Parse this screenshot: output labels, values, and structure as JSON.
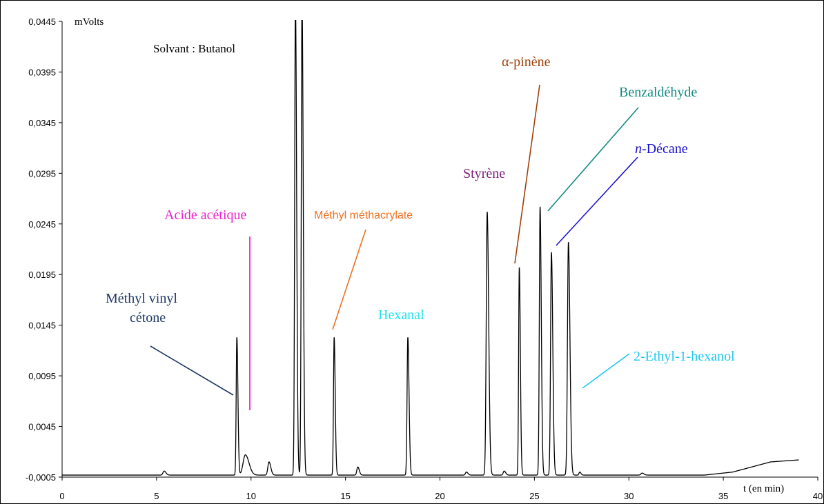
{
  "chart_data": {
    "type": "line",
    "xlabel": "t (en min)",
    "ylabel": "mVolts",
    "xlim": [
      0,
      40
    ],
    "ylim": [
      -0.0005,
      0.0445
    ],
    "x_ticks": [
      0,
      5,
      10,
      15,
      20,
      25,
      30,
      35,
      40
    ],
    "y_ticks": [
      -0.0005,
      0.0045,
      0.0095,
      0.0145,
      0.0195,
      0.0245,
      0.0295,
      0.0345,
      0.0395,
      0.0445
    ],
    "x_tick_labels": [
      "0",
      "5",
      "10",
      "15",
      "20",
      "25",
      "30",
      "35",
      "40"
    ],
    "y_tick_labels": [
      "-0,0005",
      "0,0045",
      "0,0095",
      "0,0145",
      "0,0195",
      "0,0245",
      "0,0295",
      "0,0345",
      "0,0395",
      "0,0445"
    ],
    "grid": false,
    "solvent_label": "Solvant : Butanol",
    "baseline": -0.0003,
    "peaks": [
      {
        "t": 5.4,
        "h": 0.0004,
        "w": 0.06
      },
      {
        "t": 9.25,
        "h": 0.0136,
        "w": 0.035
      },
      {
        "t": 9.7,
        "h": 0.002,
        "w": 0.12
      },
      {
        "t": 10.95,
        "h": 0.0013,
        "w": 0.06
      },
      {
        "t": 12.35,
        "h": 0.047,
        "w": 0.04
      },
      {
        "t": 12.7,
        "h": 0.047,
        "w": 0.04
      },
      {
        "t": 14.4,
        "h": 0.0136,
        "w": 0.035
      },
      {
        "t": 15.65,
        "h": 0.0008,
        "w": 0.05
      },
      {
        "t": 18.3,
        "h": 0.0136,
        "w": 0.04
      },
      {
        "t": 21.4,
        "h": 0.0003,
        "w": 0.05
      },
      {
        "t": 22.5,
        "h": 0.026,
        "w": 0.05
      },
      {
        "t": 23.4,
        "h": 0.0004,
        "w": 0.05
      },
      {
        "t": 24.2,
        "h": 0.0205,
        "w": 0.035
      },
      {
        "t": 25.3,
        "h": 0.0265,
        "w": 0.04
      },
      {
        "t": 25.9,
        "h": 0.022,
        "w": 0.045
      },
      {
        "t": 26.8,
        "h": 0.023,
        "w": 0.05
      },
      {
        "t": 27.4,
        "h": 0.0003,
        "w": 0.04
      },
      {
        "t": 30.7,
        "h": 0.0002,
        "w": 0.06
      }
    ],
    "drift": [
      {
        "t": 34.0,
        "y": -0.0003
      },
      {
        "t": 35.5,
        "y": 0.0
      },
      {
        "t": 36.5,
        "y": 0.0005
      },
      {
        "t": 37.5,
        "y": 0.001
      },
      {
        "t": 39.0,
        "y": 0.0012
      }
    ],
    "annotations": [
      {
        "label": "Méthyl vinyl",
        "color": "#1f3864"
      },
      {
        "label": "cétone",
        "color": "#1f3864"
      },
      {
        "label": "Acide acétique",
        "color": "#ee22cc"
      },
      {
        "label": "Méthyl méthacrylate",
        "color": "#f07020"
      },
      {
        "label": "Hexanal",
        "color": "#22e0f0"
      },
      {
        "label": "Styrène",
        "color": "#7b1f7b"
      },
      {
        "label": "α-pinène",
        "color": "#a0400a"
      },
      {
        "label": "Benzaldéhyde",
        "color": "#108a80"
      },
      {
        "label_italic": "n",
        "label": "-Décane",
        "color": "#1a10d0"
      },
      {
        "label": "2-Ethyl-1-hexanol",
        "color": "#1ec8f0"
      }
    ]
  }
}
